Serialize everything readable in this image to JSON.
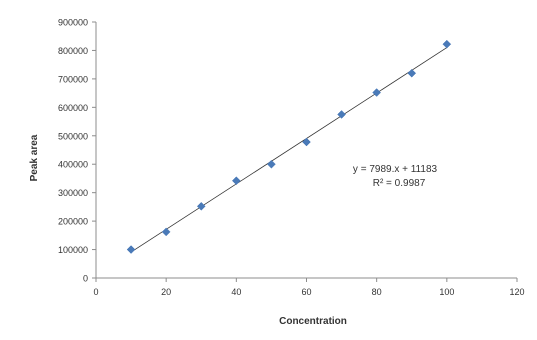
{
  "chart_data": {
    "type": "scatter",
    "xlabel": "Concentration",
    "ylabel": "Peak area",
    "xlim": [
      0,
      120
    ],
    "ylim": [
      0,
      900000
    ],
    "x_ticks": [
      0,
      20,
      40,
      60,
      80,
      100,
      120
    ],
    "x_tick_labels": [
      "0",
      "20",
      "40",
      "60",
      "80",
      "100",
      "120"
    ],
    "y_ticks": [
      0,
      100000,
      200000,
      300000,
      400000,
      500000,
      600000,
      700000,
      800000,
      900000
    ],
    "y_tick_labels": [
      "0",
      "100000",
      "200000",
      "300000",
      "400000",
      "500000",
      "600000",
      "700000",
      "800000",
      "900000"
    ],
    "series": [
      {
        "x": [
          10,
          20,
          30,
          40,
          50,
          60,
          70,
          80,
          90,
          100
        ],
        "values": [
          100000,
          162000,
          252000,
          342000,
          400000,
          478000,
          575000,
          652000,
          720000,
          822000
        ]
      }
    ],
    "trendline": {
      "slope": 7989,
      "intercept": 11183
    },
    "equation_label": "y = 7989.x + 11183",
    "r2_label": "R² = 0.9987",
    "grid": false,
    "marker_color": "#4a7ab8",
    "axis_color": "#8c8c8c",
    "line_color": "#333333"
  }
}
